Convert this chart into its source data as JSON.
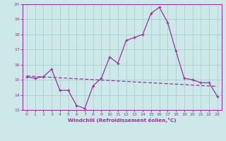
{
  "x": [
    0,
    1,
    2,
    3,
    4,
    5,
    6,
    7,
    8,
    9,
    10,
    11,
    12,
    13,
    14,
    15,
    16,
    17,
    18,
    19,
    20,
    21,
    22,
    23
  ],
  "windchill": [
    15.2,
    15.1,
    15.2,
    15.7,
    14.3,
    14.3,
    13.3,
    13.1,
    14.6,
    15.1,
    16.5,
    16.1,
    17.6,
    17.8,
    18.0,
    19.4,
    19.8,
    18.8,
    16.9,
    15.1,
    15.0,
    14.8,
    14.8,
    13.9
  ],
  "trend": [
    15.25,
    15.22,
    15.19,
    15.16,
    15.13,
    15.1,
    15.07,
    15.04,
    15.01,
    14.98,
    14.95,
    14.92,
    14.89,
    14.86,
    14.83,
    14.8,
    14.77,
    14.74,
    14.71,
    14.68,
    14.65,
    14.62,
    14.59,
    14.56
  ],
  "line_color": "#993399",
  "bg_color": "#cce8e8",
  "grid_color": "#aacfcf",
  "xlabel": "Windchill (Refroidissement éolien,°C)",
  "ylim": [
    13,
    20
  ],
  "xlim": [
    -0.5,
    23.5
  ],
  "yticks": [
    13,
    14,
    15,
    16,
    17,
    18,
    19,
    20
  ],
  "xticks": [
    0,
    1,
    2,
    3,
    4,
    5,
    6,
    7,
    8,
    9,
    10,
    11,
    12,
    13,
    14,
    15,
    16,
    17,
    18,
    19,
    20,
    21,
    22,
    23
  ]
}
